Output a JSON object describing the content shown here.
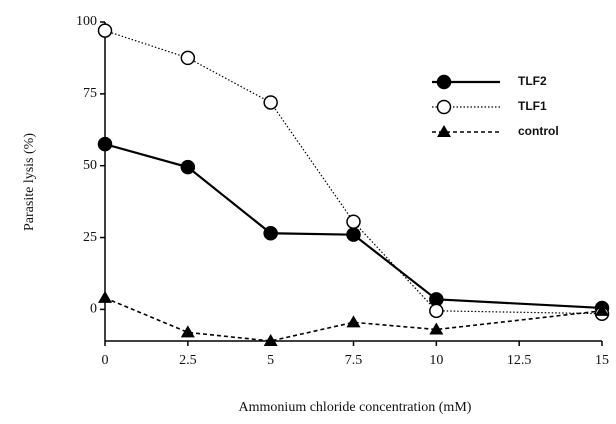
{
  "chart_data": {
    "type": "line",
    "x_label": "Ammonium chloride concentration (mM)",
    "y_label": "Parasite lysis (%)",
    "x": [
      0,
      2.5,
      5,
      7.5,
      10,
      15
    ],
    "xlim": [
      0,
      15
    ],
    "xticks": [
      0,
      2.5,
      5,
      7.5,
      10,
      12.5,
      15
    ],
    "ylim": [
      -11,
      100
    ],
    "yticks": [
      0,
      25,
      50,
      75,
      100
    ],
    "grid": false,
    "legend": "upper right",
    "series": [
      {
        "name": "TLF2",
        "color": "#000000",
        "line_style": "solid",
        "marker": "filled-circle",
        "values": [
          57.5,
          49.5,
          26.5,
          26,
          3.5,
          0.5
        ]
      },
      {
        "name": "TLF1",
        "color": "#000000",
        "line_style": "dotted",
        "marker": "open-circle",
        "values": [
          97,
          87.5,
          72,
          30.5,
          -0.5,
          -1.5
        ]
      },
      {
        "name": "control",
        "color": "#000000",
        "line_style": "dashed",
        "marker": "filled-triangle",
        "values": [
          4,
          -8,
          -11,
          -4.5,
          -7,
          -0.5
        ]
      }
    ]
  }
}
